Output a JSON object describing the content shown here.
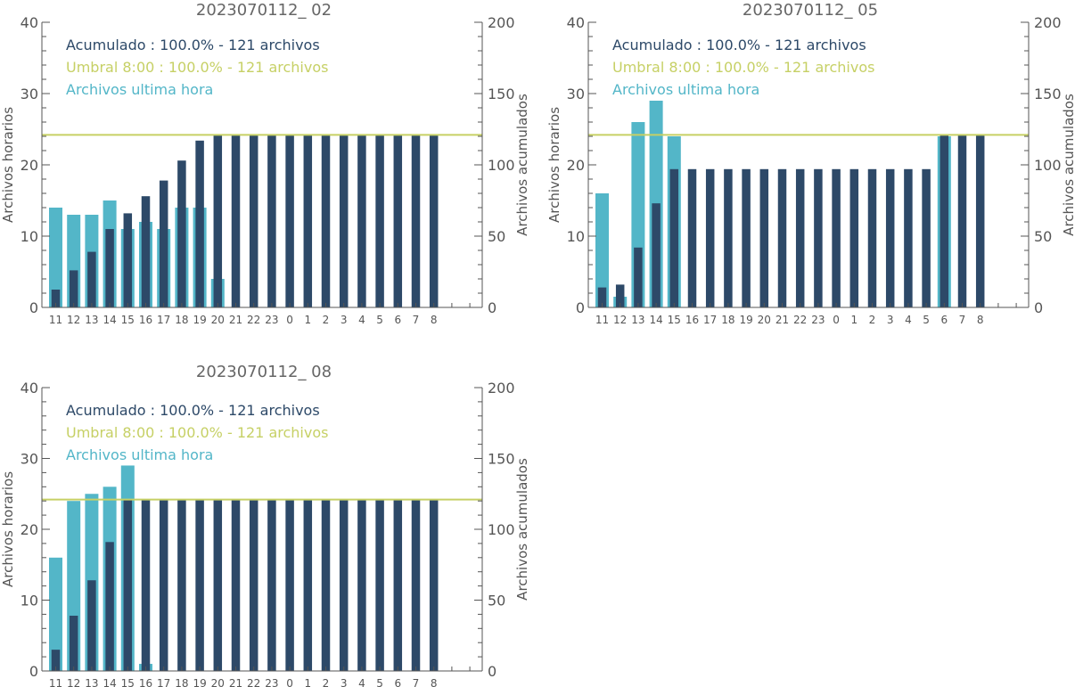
{
  "colors": {
    "hourly": "#53b6c8",
    "cumulative": "#2d4968",
    "threshold": "#c6d065",
    "axis": "#555555",
    "title": "#666666"
  },
  "chart_data": [
    {
      "type": "bar",
      "title": "2023070112_ 02",
      "ylabel_left": "Archivos horarios",
      "ylabel_right": "Archivos acumulados",
      "ylim_left": [
        0,
        40
      ],
      "ylim_right": [
        0,
        200
      ],
      "yticks_left": [
        0,
        10,
        20,
        30,
        40
      ],
      "yticks_right": [
        0,
        50,
        100,
        150,
        200
      ],
      "categories": [
        "11",
        "12",
        "13",
        "14",
        "15",
        "16",
        "17",
        "18",
        "19",
        "20",
        "21",
        "22",
        "23",
        "0",
        "1",
        "2",
        "3",
        "4",
        "5",
        "6",
        "7",
        "8"
      ],
      "legend": [
        "Acumulado : 100.0% - 121 archivos",
        "Umbral 8:00 : 100.0% - 121 archivos",
        "Archivos ultima hora"
      ],
      "threshold": 121,
      "series": [
        {
          "name": "Archivos ultima hora",
          "axis": "left",
          "values": [
            14,
            13,
            13,
            15,
            11,
            12,
            11,
            14,
            14,
            4,
            0,
            0,
            0,
            0,
            0,
            0,
            0,
            0,
            0,
            0,
            0,
            0
          ]
        },
        {
          "name": "Acumulado",
          "axis": "right",
          "values": [
            12.5,
            26,
            39,
            55,
            66,
            78,
            89,
            103,
            117,
            121,
            121,
            121,
            121,
            121,
            121,
            121,
            121,
            121,
            121,
            121,
            121,
            121
          ]
        }
      ]
    },
    {
      "type": "bar",
      "title": "2023070112_ 05",
      "ylabel_left": "Archivos horarios",
      "ylabel_right": "Archivos acumulados",
      "ylim_left": [
        0,
        40
      ],
      "ylim_right": [
        0,
        200
      ],
      "yticks_left": [
        0,
        10,
        20,
        30,
        40
      ],
      "yticks_right": [
        0,
        50,
        100,
        150,
        200
      ],
      "categories": [
        "11",
        "12",
        "13",
        "14",
        "15",
        "16",
        "17",
        "18",
        "19",
        "20",
        "21",
        "22",
        "23",
        "0",
        "1",
        "2",
        "3",
        "4",
        "5",
        "6",
        "7",
        "8"
      ],
      "legend": [
        "Acumulado : 100.0% - 121 archivos",
        "Umbral 8:00 : 100.0% - 121 archivos",
        "Archivos ultima hora"
      ],
      "threshold": 121,
      "series": [
        {
          "name": "Archivos ultima hora",
          "axis": "left",
          "values": [
            16,
            1.5,
            26,
            29,
            24,
            0,
            0,
            0,
            0,
            0,
            0,
            0,
            0,
            0,
            0,
            0,
            0,
            0,
            0,
            24,
            0,
            0
          ]
        },
        {
          "name": "Acumulado",
          "axis": "right",
          "values": [
            14,
            16,
            42,
            73,
            97,
            97,
            97,
            97,
            97,
            97,
            97,
            97,
            97,
            97,
            97,
            97,
            97,
            97,
            97,
            121,
            121,
            121
          ]
        }
      ]
    },
    {
      "type": "bar",
      "title": "2023070112_ 08",
      "ylabel_left": "Archivos horarios",
      "ylabel_right": "Archivos acumulados",
      "ylim_left": [
        0,
        40
      ],
      "ylim_right": [
        0,
        200
      ],
      "yticks_left": [
        0,
        10,
        20,
        30,
        40
      ],
      "yticks_right": [
        0,
        50,
        100,
        150,
        200
      ],
      "categories": [
        "11",
        "12",
        "13",
        "14",
        "15",
        "16",
        "17",
        "18",
        "19",
        "20",
        "21",
        "22",
        "23",
        "0",
        "1",
        "2",
        "3",
        "4",
        "5",
        "6",
        "7",
        "8"
      ],
      "legend": [
        "Acumulado : 100.0% - 121 archivos",
        "Umbral 8:00 : 100.0% - 121 archivos",
        "Archivos ultima hora"
      ],
      "threshold": 121,
      "series": [
        {
          "name": "Archivos ultima hora",
          "axis": "left",
          "values": [
            16,
            24,
            25,
            26,
            29,
            1,
            0,
            0,
            0,
            0,
            0,
            0,
            0,
            0,
            0,
            0,
            0,
            0,
            0,
            0,
            0,
            0
          ]
        },
        {
          "name": "Acumulado",
          "axis": "right",
          "values": [
            15,
            39,
            64,
            91,
            121,
            121,
            121,
            121,
            121,
            121,
            121,
            121,
            121,
            121,
            121,
            121,
            121,
            121,
            121,
            121,
            121,
            121
          ]
        }
      ]
    }
  ]
}
